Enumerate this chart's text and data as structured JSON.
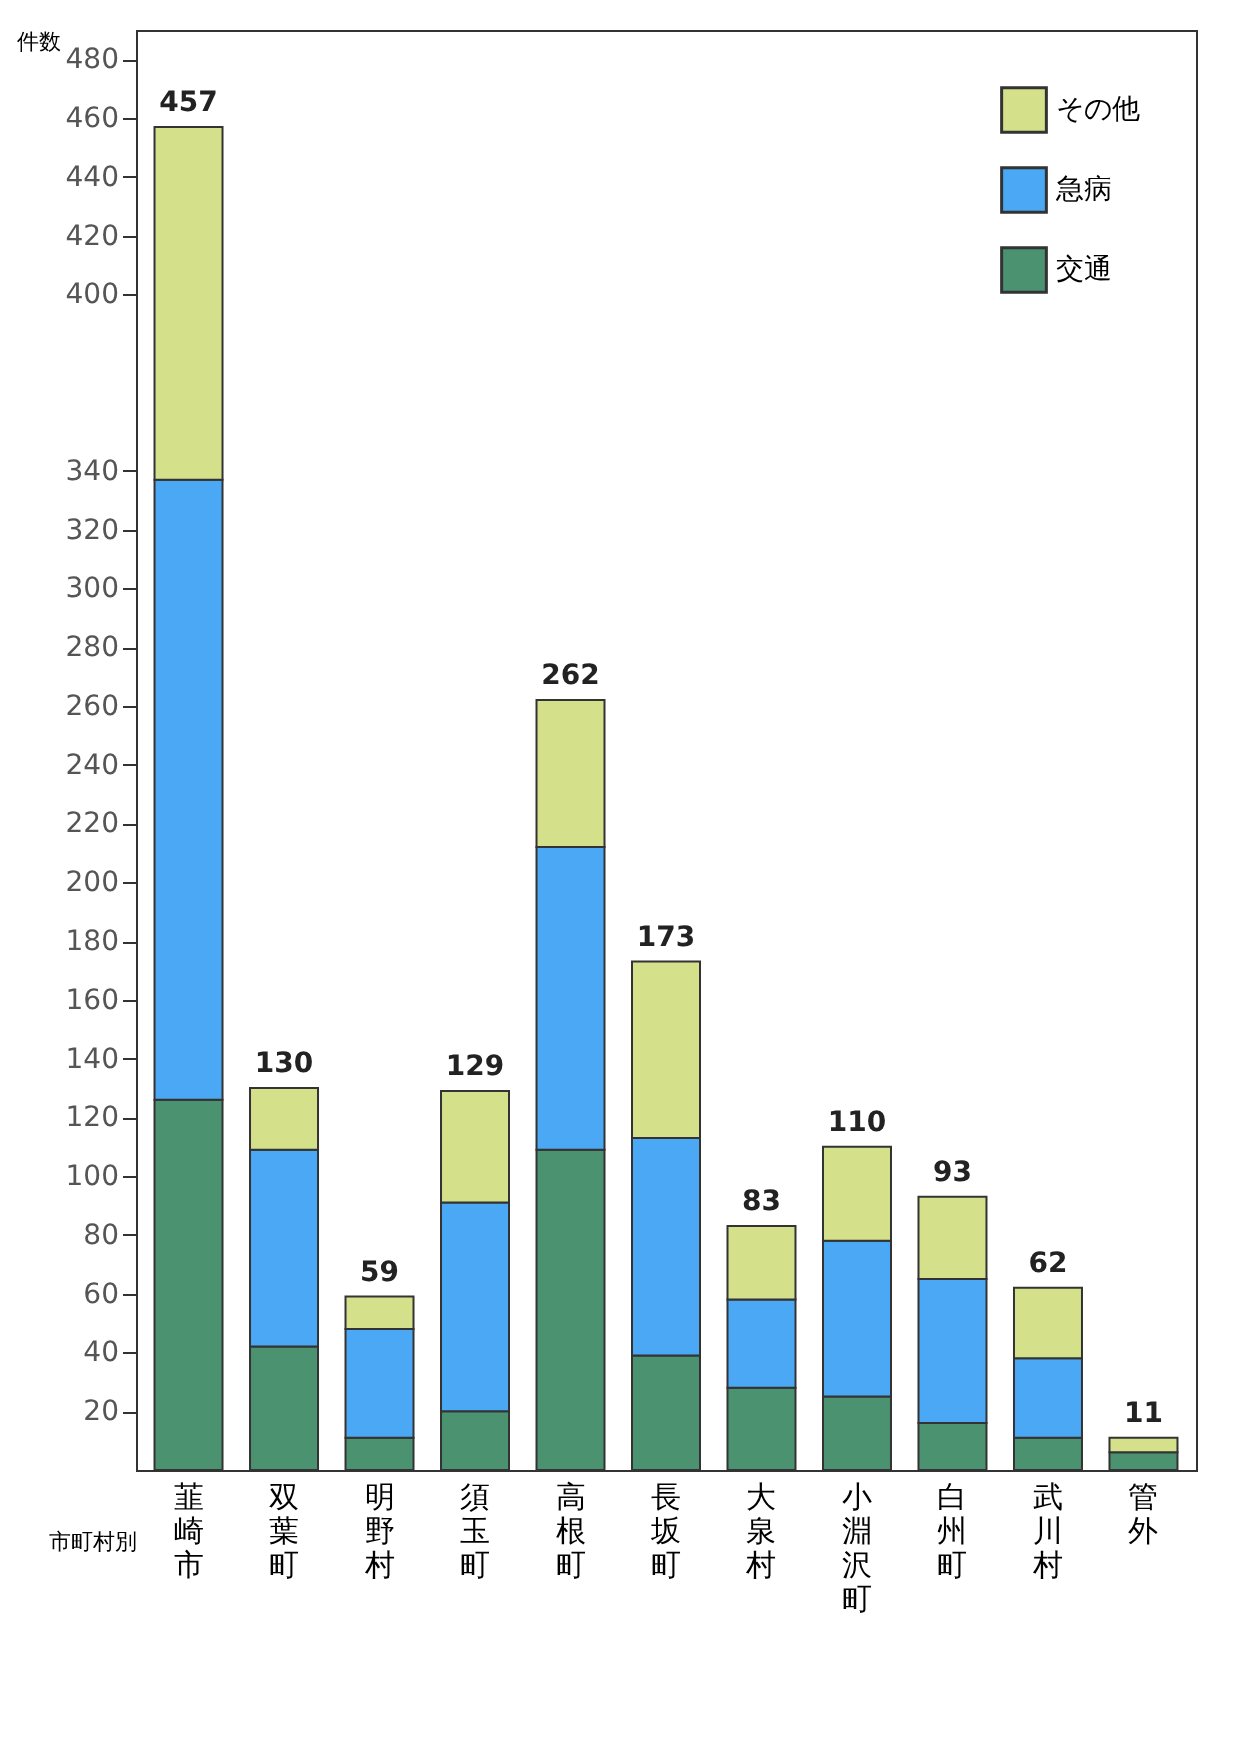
{
  "chart_data": {
    "type": "bar",
    "stacked": true,
    "xlabel": "市町村別",
    "ylabel": "件数",
    "categories": [
      "韮崎市",
      "双葉町",
      "明野村",
      "須玉町",
      "高根町",
      "長坂町",
      "大泉村",
      "小淵沢町",
      "白州町",
      "武川村",
      "管外"
    ],
    "series": [
      {
        "name": "交通",
        "color": "#4a9270",
        "values": [
          126,
          42,
          11,
          20,
          109,
          39,
          28,
          25,
          16,
          11,
          6
        ]
      },
      {
        "name": "急病",
        "color": "#4aa8f5",
        "values": [
          211,
          67,
          37,
          71,
          103,
          74,
          30,
          53,
          49,
          27,
          null
        ]
      },
      {
        "name": "その他",
        "color": "#d4e08a",
        "values": [
          120,
          21,
          11,
          38,
          50,
          60,
          25,
          32,
          28,
          24,
          5
        ]
      }
    ],
    "totals": [
      "457",
      "130",
      "59",
      "129",
      "262",
      "173",
      "83",
      "110",
      "93",
      "62",
      "11"
    ],
    "ylim": [
      0,
      490
    ],
    "yticks": [
      20,
      40,
      60,
      80,
      100,
      120,
      140,
      160,
      180,
      200,
      220,
      240,
      260,
      280,
      300,
      320,
      340,
      400,
      420,
      440,
      460,
      480
    ],
    "grid": false,
    "legend": "top right"
  }
}
